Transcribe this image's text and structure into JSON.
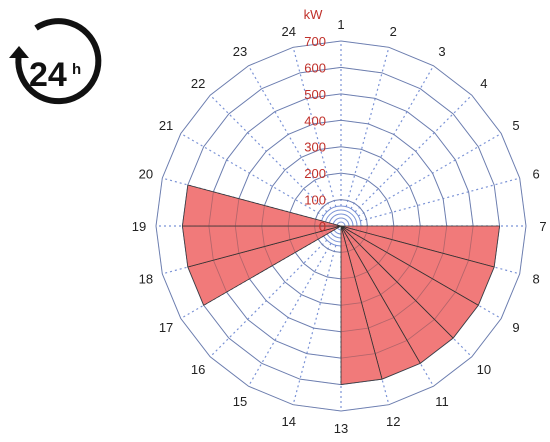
{
  "logo": {
    "number": "24",
    "suffix": "h",
    "icon": "24h-cycle-icon"
  },
  "chart_data": {
    "type": "polar-bar",
    "unit_label": "kW",
    "rlim": [
      0,
      700
    ],
    "radial_ticks": [
      "0",
      "100",
      "200",
      "300",
      "400",
      "500",
      "600",
      "700"
    ],
    "hours": [
      "1",
      "2",
      "3",
      "4",
      "5",
      "6",
      "7",
      "8",
      "9",
      "10",
      "11",
      "12",
      "13",
      "14",
      "15",
      "16",
      "17",
      "18",
      "19",
      "20",
      "21",
      "22",
      "23",
      "24"
    ],
    "values": [
      0,
      0,
      0,
      0,
      0,
      0,
      600,
      600,
      600,
      600,
      600,
      600,
      0,
      0,
      0,
      0,
      600,
      600,
      600,
      0,
      0,
      0,
      0,
      0
    ],
    "wedge_color": "#f06b6b",
    "grid": true
  }
}
